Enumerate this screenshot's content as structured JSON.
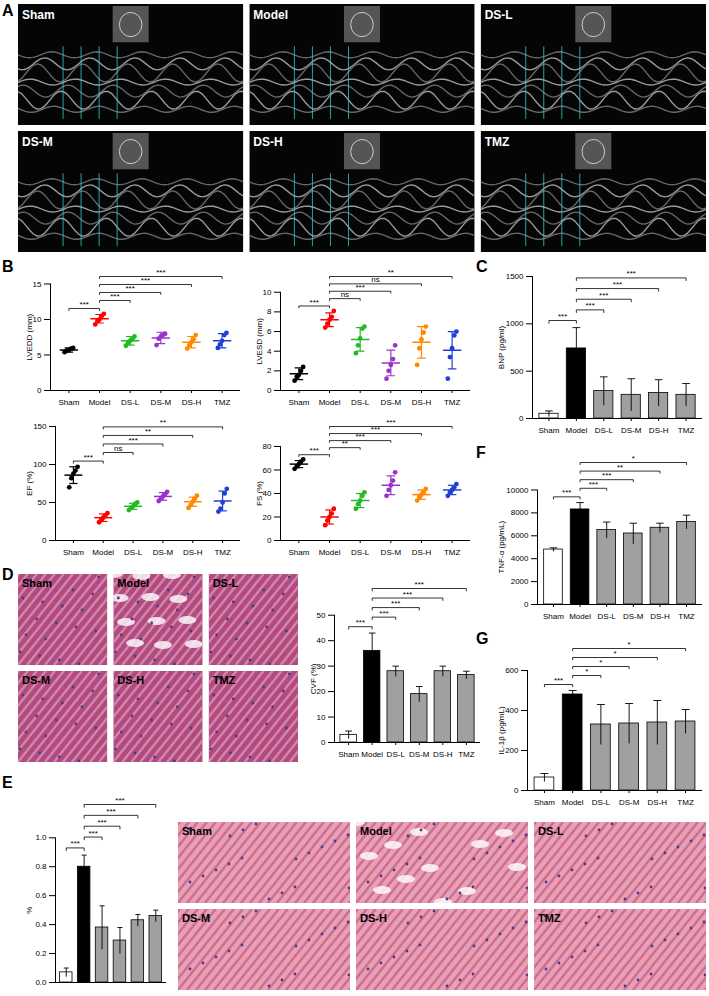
{
  "images": [
    {
      "panel": "A",
      "type": "echo",
      "labels": [
        "Sham",
        "Model",
        "DS-L",
        "DS-M",
        "DS-H",
        "TMZ"
      ]
    },
    {
      "panel": "D",
      "type": "masson",
      "labels": [
        "Sham",
        "Model",
        "DS-L",
        "DS-M",
        "DS-H",
        "TMZ"
      ]
    },
    {
      "panel": "E",
      "type": "he",
      "labels": [
        "Sham",
        "Model",
        "DS-L",
        "DS-M",
        "DS-H",
        "TMZ"
      ]
    }
  ],
  "chart_data": [
    {
      "panel": "B",
      "type": "scatter",
      "ylabel": "LVEDD (mm)",
      "categories": [
        "Sham",
        "Model",
        "DS-L",
        "DS-M",
        "DS-H",
        "TMZ"
      ],
      "points": [
        [
          5.4,
          5.6,
          5.7,
          5.9,
          6.0
        ],
        [
          9.3,
          9.8,
          10.0,
          10.5,
          10.8
        ],
        [
          6.3,
          6.7,
          7.0,
          7.2,
          7.6
        ],
        [
          6.4,
          7.3,
          7.6,
          7.8,
          8.0
        ],
        [
          5.9,
          6.4,
          6.8,
          7.2,
          7.8
        ],
        [
          6.0,
          6.5,
          7.0,
          7.8,
          8.1
        ]
      ],
      "values": [
        5.7,
        10.1,
        7.0,
        7.4,
        6.8,
        7.0
      ],
      "sd": [
        0.3,
        0.6,
        0.6,
        0.8,
        0.8,
        1.0
      ],
      "colors": [
        "#000000",
        "#ff0000",
        "#22bb22",
        "#9933cc",
        "#ff8800",
        "#1f3fd6"
      ],
      "ylim": [
        0,
        15
      ],
      "yticks": [
        0,
        5,
        10,
        15
      ],
      "comparisons": [
        {
          "from": "Sham",
          "to": "Model",
          "label": "***"
        },
        {
          "from": "Model",
          "to": "DS-L",
          "label": "***"
        },
        {
          "from": "Model",
          "to": "DS-M",
          "label": "***"
        },
        {
          "from": "Model",
          "to": "DS-H",
          "label": "***"
        },
        {
          "from": "Model",
          "to": "TMZ",
          "label": "***"
        }
      ]
    },
    {
      "panel": "B",
      "type": "scatter",
      "ylabel": "LVESD (mm)",
      "categories": [
        "Sham",
        "Model",
        "DS-L",
        "DS-M",
        "DS-H",
        "TMZ"
      ],
      "points": [
        [
          1.0,
          1.4,
          1.6,
          2.0,
          2.4
        ],
        [
          6.4,
          6.8,
          7.2,
          7.5,
          8.1
        ],
        [
          3.8,
          4.6,
          5.3,
          6.3,
          6.5
        ],
        [
          1.2,
          2.0,
          2.6,
          3.2,
          4.6
        ],
        [
          2.6,
          4.3,
          5.2,
          5.9,
          6.5
        ],
        [
          1.2,
          3.4,
          4.3,
          5.6,
          6.0
        ]
      ],
      "values": [
        1.7,
        7.2,
        5.2,
        2.8,
        4.9,
        4.1
      ],
      "sd": [
        0.6,
        0.7,
        1.2,
        1.3,
        1.6,
        1.9
      ],
      "colors": [
        "#000000",
        "#ff0000",
        "#22bb22",
        "#9933cc",
        "#ff8800",
        "#1f3fd6"
      ],
      "ylim": [
        0,
        10
      ],
      "yticks": [
        0,
        2,
        4,
        6,
        8,
        10
      ],
      "comparisons": [
        {
          "from": "Sham",
          "to": "Model",
          "label": "***"
        },
        {
          "from": "Model",
          "to": "DS-L",
          "label": "ns"
        },
        {
          "from": "Model",
          "to": "DS-M",
          "label": "***"
        },
        {
          "from": "Model",
          "to": "DS-H",
          "label": "ns"
        },
        {
          "from": "Model",
          "to": "TMZ",
          "label": "**"
        }
      ]
    },
    {
      "panel": "B",
      "type": "scatter",
      "ylabel": "EF (%)",
      "categories": [
        "Sham",
        "Model",
        "DS-L",
        "DS-M",
        "DS-H",
        "TMZ"
      ],
      "points": [
        [
          70,
          82,
          88,
          92,
          97
        ],
        [
          24,
          27,
          30,
          33,
          36
        ],
        [
          40,
          43,
          45,
          48,
          50
        ],
        [
          52,
          55,
          58,
          61,
          64
        ],
        [
          43,
          47,
          51,
          55,
          59
        ],
        [
          38,
          42,
          50,
          62,
          68
        ]
      ],
      "values": [
        86,
        30,
        45,
        58,
        51,
        52
      ],
      "sd": [
        11,
        5,
        4,
        5,
        6,
        13
      ],
      "colors": [
        "#000000",
        "#ff0000",
        "#22bb22",
        "#9933cc",
        "#ff8800",
        "#1f3fd6"
      ],
      "ylim": [
        0,
        150
      ],
      "yticks": [
        0,
        50,
        100,
        150
      ],
      "comparisons": [
        {
          "from": "Sham",
          "to": "Model",
          "label": "***"
        },
        {
          "from": "Model",
          "to": "DS-L",
          "label": "ns"
        },
        {
          "from": "Model",
          "to": "DS-M",
          "label": "***"
        },
        {
          "from": "Model",
          "to": "DS-H",
          "label": "**"
        },
        {
          "from": "Model",
          "to": "TMZ",
          "label": "**"
        }
      ]
    },
    {
      "panel": "B",
      "type": "scatter",
      "ylabel": "FS (%)",
      "categories": [
        "Sham",
        "Model",
        "DS-L",
        "DS-M",
        "DS-H",
        "TMZ"
      ],
      "points": [
        [
          61,
          63,
          65,
          67,
          69
        ],
        [
          13,
          17,
          20,
          23,
          27
        ],
        [
          27,
          31,
          34,
          38,
          41
        ],
        [
          38,
          43,
          47,
          51,
          58
        ],
        [
          34,
          37,
          39,
          41,
          44
        ],
        [
          38,
          41,
          43,
          45,
          48
        ]
      ],
      "values": [
        65,
        20,
        34,
        47,
        39,
        43
      ],
      "sd": [
        3,
        6,
        6,
        8,
        4,
        4
      ],
      "colors": [
        "#000000",
        "#ff0000",
        "#22bb22",
        "#9933cc",
        "#ff8800",
        "#1f3fd6"
      ],
      "ylim": [
        0,
        80
      ],
      "yticks": [
        0,
        20,
        40,
        60,
        80
      ],
      "comparisons": [
        {
          "from": "Sham",
          "to": "Model",
          "label": "***"
        },
        {
          "from": "Model",
          "to": "DS-L",
          "label": "**"
        },
        {
          "from": "Model",
          "to": "DS-M",
          "label": "***"
        },
        {
          "from": "Model",
          "to": "DS-H",
          "label": "***"
        },
        {
          "from": "Model",
          "to": "TMZ",
          "label": "***"
        }
      ]
    },
    {
      "panel": "C",
      "type": "bar",
      "ylabel": "BNP (pg/ml)",
      "categories": [
        "Sham",
        "Model",
        "DS-L",
        "DS-M",
        "DS-H",
        "TMZ"
      ],
      "values": [
        50,
        740,
        290,
        250,
        270,
        250
      ],
      "sd": [
        30,
        220,
        150,
        170,
        140,
        120
      ],
      "colors": [
        "#ffffff",
        "#000000",
        "#a0a0a0",
        "#a0a0a0",
        "#a0a0a0",
        "#a0a0a0"
      ],
      "ylim": [
        0,
        1500
      ],
      "yticks": [
        0,
        500,
        1000,
        1500
      ],
      "comparisons": [
        {
          "from": "Sham",
          "to": "Model",
          "label": "***"
        },
        {
          "from": "Model",
          "to": "DS-L",
          "label": "***"
        },
        {
          "from": "Model",
          "to": "DS-M",
          "label": "***"
        },
        {
          "from": "Model",
          "to": "DS-H",
          "label": "***"
        },
        {
          "from": "Model",
          "to": "TMZ",
          "label": "***"
        }
      ]
    },
    {
      "panel": "D",
      "type": "bar",
      "ylabel": "CVF (%)",
      "categories": [
        "Sham",
        "Model",
        "DS-L",
        "DS-M",
        "DS-H",
        "TMZ"
      ],
      "values": [
        3,
        36,
        28,
        19,
        28,
        26.5
      ],
      "sd": [
        1.5,
        7,
        2,
        3,
        2,
        1.5
      ],
      "colors": [
        "#ffffff",
        "#000000",
        "#a0a0a0",
        "#a0a0a0",
        "#a0a0a0",
        "#a0a0a0"
      ],
      "ylim": [
        0,
        50
      ],
      "yticks": [
        0,
        10,
        20,
        30,
        40,
        50
      ],
      "comparisons": [
        {
          "from": "Sham",
          "to": "Model",
          "label": "***"
        },
        {
          "from": "Model",
          "to": "DS-L",
          "label": "***"
        },
        {
          "from": "Model",
          "to": "DS-M",
          "label": "***"
        },
        {
          "from": "Model",
          "to": "DS-H",
          "label": "***"
        },
        {
          "from": "Model",
          "to": "TMZ",
          "label": "***"
        }
      ]
    },
    {
      "panel": "E",
      "type": "bar",
      "ylabel": "%",
      "tick_labels": "y",
      "categories": [
        null,
        null,
        null,
        null,
        null,
        null
      ],
      "values": [
        0.07,
        0.8,
        0.38,
        0.29,
        0.43,
        0.46
      ],
      "sd": [
        0.03,
        0.08,
        0.15,
        0.09,
        0.04,
        0.04
      ],
      "colors": [
        "#ffffff",
        "#000000",
        "#a0a0a0",
        "#a0a0a0",
        "#a0a0a0",
        "#a0a0a0"
      ],
      "ylim": [
        0,
        1.0
      ],
      "yticks": [
        {
          "value": 0,
          "label": "0.0"
        },
        {
          "value": 0.2,
          "label": "0.2"
        },
        {
          "value": 0.4,
          "label": "0.4"
        },
        {
          "value": 0.6,
          "label": "0.6"
        },
        {
          "value": 0.8,
          "label": "0.8"
        },
        {
          "value": 1.0,
          "label": "1.0"
        }
      ],
      "comparisons": [
        {
          "from": 0,
          "to": 1,
          "label": "***"
        },
        {
          "from": 1,
          "to": 2,
          "label": "***"
        },
        {
          "from": 1,
          "to": 3,
          "label": "***"
        },
        {
          "from": 1,
          "to": 4,
          "label": "***"
        },
        {
          "from": 1,
          "to": 5,
          "label": "***"
        }
      ]
    },
    {
      "panel": "F",
      "type": "bar",
      "ylabel": "TNF-α (pg/mL)",
      "categories": [
        "Sham",
        "Model",
        "DS-L",
        "DS-M",
        "DS-H",
        "TMZ"
      ],
      "values": [
        4800,
        8300,
        6500,
        6200,
        6700,
        7200
      ],
      "sd": [
        150,
        600,
        700,
        900,
        400,
        600
      ],
      "colors": [
        "#ffffff",
        "#000000",
        "#a0a0a0",
        "#a0a0a0",
        "#a0a0a0",
        "#a0a0a0"
      ],
      "ylim": [
        0,
        10000
      ],
      "yticks": [
        0,
        2000,
        4000,
        6000,
        8000,
        10000
      ],
      "comparisons": [
        {
          "from": "Sham",
          "to": "Model",
          "label": "***"
        },
        {
          "from": "Model",
          "to": "DS-L",
          "label": "***"
        },
        {
          "from": "Model",
          "to": "DS-M",
          "label": "***"
        },
        {
          "from": "Model",
          "to": "DS-H",
          "label": "**"
        },
        {
          "from": "Model",
          "to": "TMZ",
          "label": "*"
        }
      ]
    },
    {
      "panel": "G",
      "type": "bar",
      "ylabel": "IL-1β (pg/mL)",
      "categories": [
        "Sham",
        "Model",
        "DS-L",
        "DS-M",
        "DS-H",
        "TMZ"
      ],
      "values": [
        65,
        480,
        330,
        335,
        340,
        345
      ],
      "sd": [
        20,
        20,
        100,
        100,
        110,
        60
      ],
      "colors": [
        "#ffffff",
        "#000000",
        "#a0a0a0",
        "#a0a0a0",
        "#a0a0a0",
        "#a0a0a0"
      ],
      "ylim": [
        0,
        600
      ],
      "yticks": [
        0,
        200,
        400,
        600
      ],
      "comparisons": [
        {
          "from": "Sham",
          "to": "Model",
          "label": "***"
        },
        {
          "from": "Model",
          "to": "DS-L",
          "label": "*"
        },
        {
          "from": "Model",
          "to": "DS-M",
          "label": "*"
        },
        {
          "from": "Model",
          "to": "DS-H",
          "label": "*"
        },
        {
          "from": "Model",
          "to": "TMZ",
          "label": "*"
        }
      ]
    }
  ]
}
